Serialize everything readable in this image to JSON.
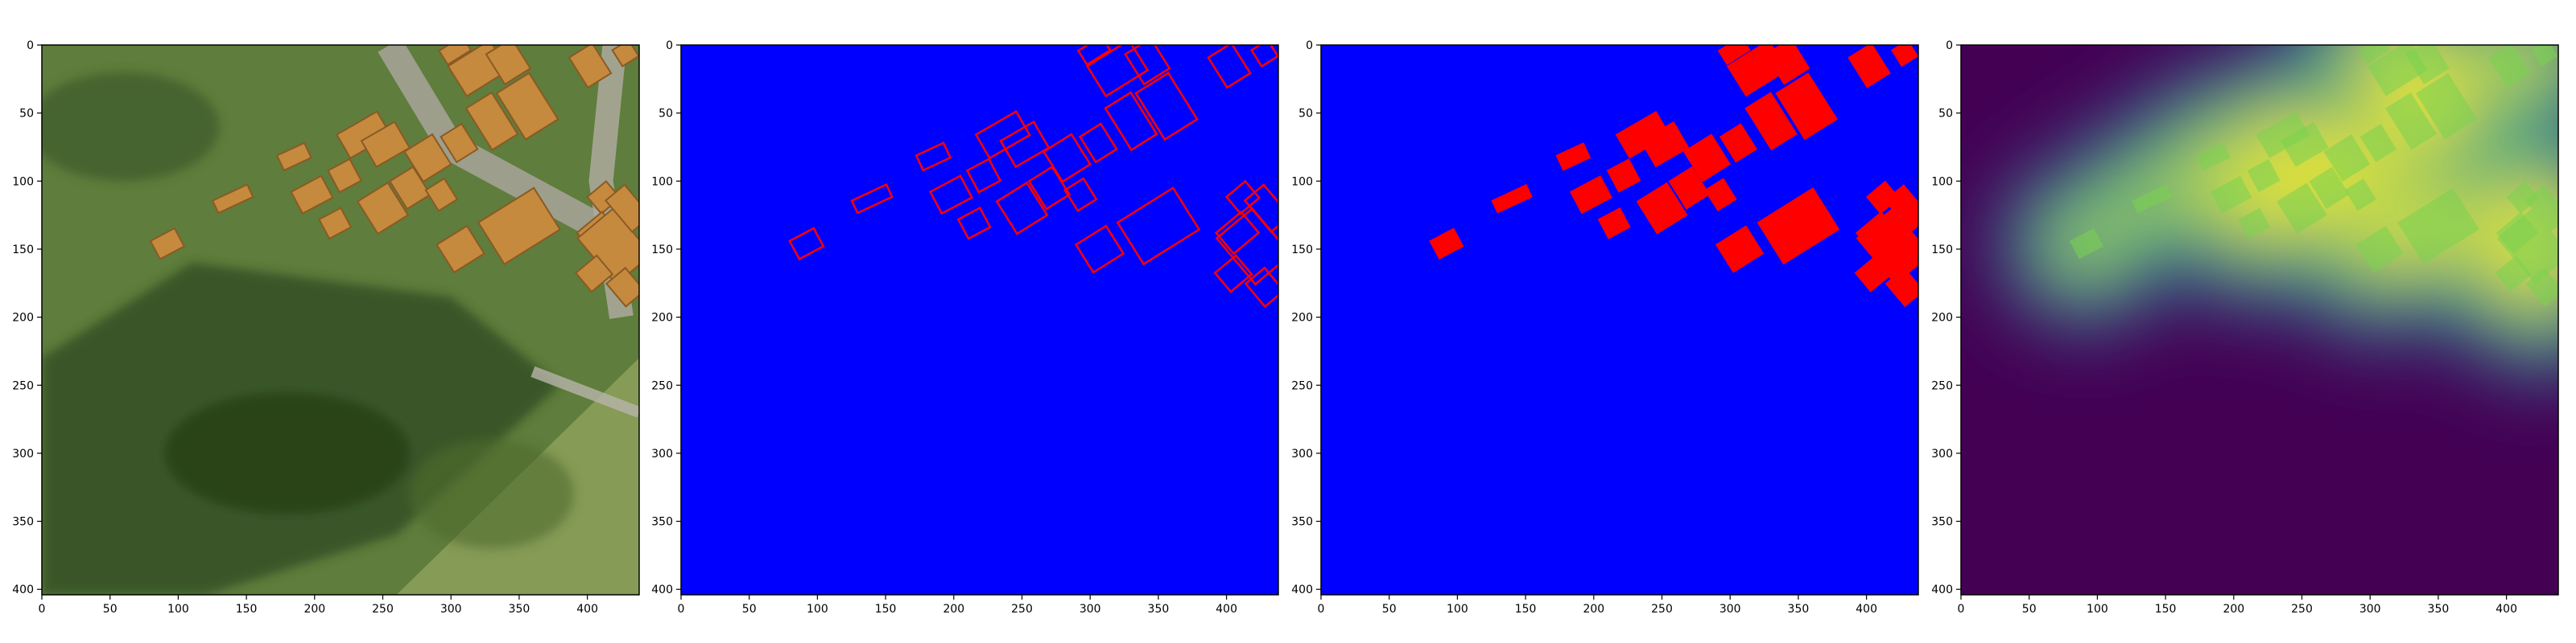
{
  "figure": {
    "x_ticks": [
      "0",
      "50",
      "100",
      "150",
      "200",
      "250",
      "300",
      "350",
      "400"
    ],
    "y_ticks": [
      "0",
      "50",
      "100",
      "150",
      "200",
      "250",
      "300",
      "350",
      "400"
    ],
    "x_range": [
      0,
      438
    ],
    "y_range": [
      0,
      404
    ],
    "panels": [
      {
        "kind": "aerial-photo"
      },
      {
        "kind": "outline-mask",
        "background": "#0000ff",
        "foreground": "#ff0000"
      },
      {
        "kind": "filled-mask",
        "background": "#0000ff",
        "foreground": "#ff0000"
      },
      {
        "kind": "distance-heatmap",
        "colormap": "viridis"
      }
    ],
    "buildings": [
      {
        "cx": 92,
        "cy": 146,
        "w": 20,
        "h": 15,
        "angle": -28
      },
      {
        "cx": 140,
        "cy": 113,
        "w": 28,
        "h": 10,
        "angle": -25
      },
      {
        "cx": 185,
        "cy": 82,
        "w": 22,
        "h": 12,
        "angle": -25
      },
      {
        "cx": 198,
        "cy": 110,
        "w": 25,
        "h": 18,
        "angle": -28
      },
      {
        "cx": 215,
        "cy": 131,
        "w": 18,
        "h": 16,
        "angle": -28
      },
      {
        "cx": 222,
        "cy": 96,
        "w": 18,
        "h": 18,
        "angle": -28
      },
      {
        "cx": 236,
        "cy": 66,
        "w": 34,
        "h": 20,
        "angle": -30
      },
      {
        "cx": 252,
        "cy": 73,
        "w": 28,
        "h": 22,
        "angle": -30
      },
      {
        "cx": 250,
        "cy": 120,
        "w": 26,
        "h": 28,
        "angle": -32
      },
      {
        "cx": 270,
        "cy": 105,
        "w": 20,
        "h": 24,
        "angle": -32
      },
      {
        "cx": 283,
        "cy": 83,
        "w": 24,
        "h": 26,
        "angle": -32
      },
      {
        "cx": 293,
        "cy": 110,
        "w": 16,
        "h": 18,
        "angle": -32
      },
      {
        "cx": 307,
        "cy": 150,
        "w": 26,
        "h": 24,
        "angle": -32
      },
      {
        "cx": 306,
        "cy": 72,
        "w": 18,
        "h": 22,
        "angle": -32
      },
      {
        "cx": 330,
        "cy": 56,
        "w": 22,
        "h": 36,
        "angle": -32
      },
      {
        "cx": 320,
        "cy": 17,
        "w": 36,
        "h": 26,
        "angle": -32
      },
      {
        "cx": 303,
        "cy": 4,
        "w": 20,
        "h": 12,
        "angle": -32
      },
      {
        "cx": 342,
        "cy": 12,
        "w": 22,
        "h": 26,
        "angle": -32
      },
      {
        "cx": 356,
        "cy": 45,
        "w": 28,
        "h": 40,
        "angle": -32
      },
      {
        "cx": 350,
        "cy": 133,
        "w": 48,
        "h": 36,
        "angle": -32
      },
      {
        "cx": 402,
        "cy": 15,
        "w": 20,
        "h": 26,
        "angle": -32
      },
      {
        "cx": 428,
        "cy": 6,
        "w": 14,
        "h": 14,
        "angle": -32
      },
      {
        "cx": 412,
        "cy": 112,
        "w": 18,
        "h": 16,
        "angle": -40
      },
      {
        "cx": 408,
        "cy": 138,
        "w": 24,
        "h": 20,
        "angle": -40
      },
      {
        "cx": 420,
        "cy": 148,
        "w": 34,
        "h": 44,
        "angle": -40
      },
      {
        "cx": 405,
        "cy": 168,
        "w": 20,
        "h": 18,
        "angle": -40
      },
      {
        "cx": 428,
        "cy": 178,
        "w": 18,
        "h": 22,
        "angle": -40
      },
      {
        "cx": 430,
        "cy": 120,
        "w": 18,
        "h": 30,
        "angle": -40
      }
    ]
  }
}
